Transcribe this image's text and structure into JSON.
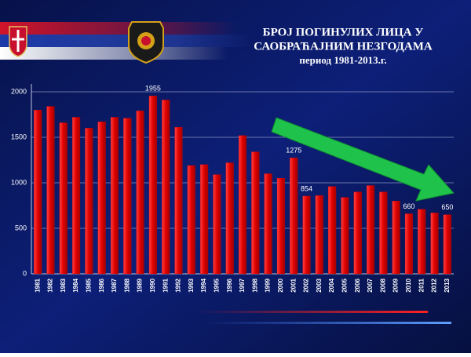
{
  "chart_data": {
    "type": "bar",
    "title": [
      "БРОЈ ПОГИНУЛИХ  ЛИЦА У",
      "САОБРАЋАЈНИМ НЕЗГОДАМА",
      "период  1981-2013.г."
    ],
    "categories": [
      "1981",
      "1982",
      "1983",
      "1984",
      "1985",
      "1986",
      "1987",
      "1988",
      "1989",
      "1990",
      "1991",
      "1992",
      "1993",
      "1994",
      "1995",
      "1996",
      "1997",
      "1998",
      "1999",
      "2000",
      "2001",
      "2002",
      "2003",
      "2004",
      "2005",
      "2006",
      "2007",
      "2008",
      "2009",
      "2010",
      "2011",
      "2012",
      "2013"
    ],
    "values": [
      1800,
      1840,
      1660,
      1720,
      1600,
      1670,
      1720,
      1710,
      1790,
      1955,
      1910,
      1610,
      1190,
      1200,
      1090,
      1220,
      1520,
      1340,
      1100,
      1050,
      1275,
      854,
      860,
      960,
      840,
      900,
      970,
      900,
      800,
      660,
      710,
      670,
      650
    ],
    "value_labels": [
      null,
      null,
      null,
      null,
      null,
      null,
      null,
      null,
      null,
      "1955",
      null,
      null,
      null,
      null,
      null,
      null,
      null,
      null,
      null,
      null,
      "1275",
      "854",
      null,
      null,
      null,
      null,
      null,
      null,
      null,
      "660",
      null,
      null,
      "650"
    ],
    "color": "#e00000",
    "ylim": [
      0,
      2000
    ],
    "yticks": [
      0,
      500,
      1000,
      1500,
      2000
    ],
    "grid": true
  }
}
